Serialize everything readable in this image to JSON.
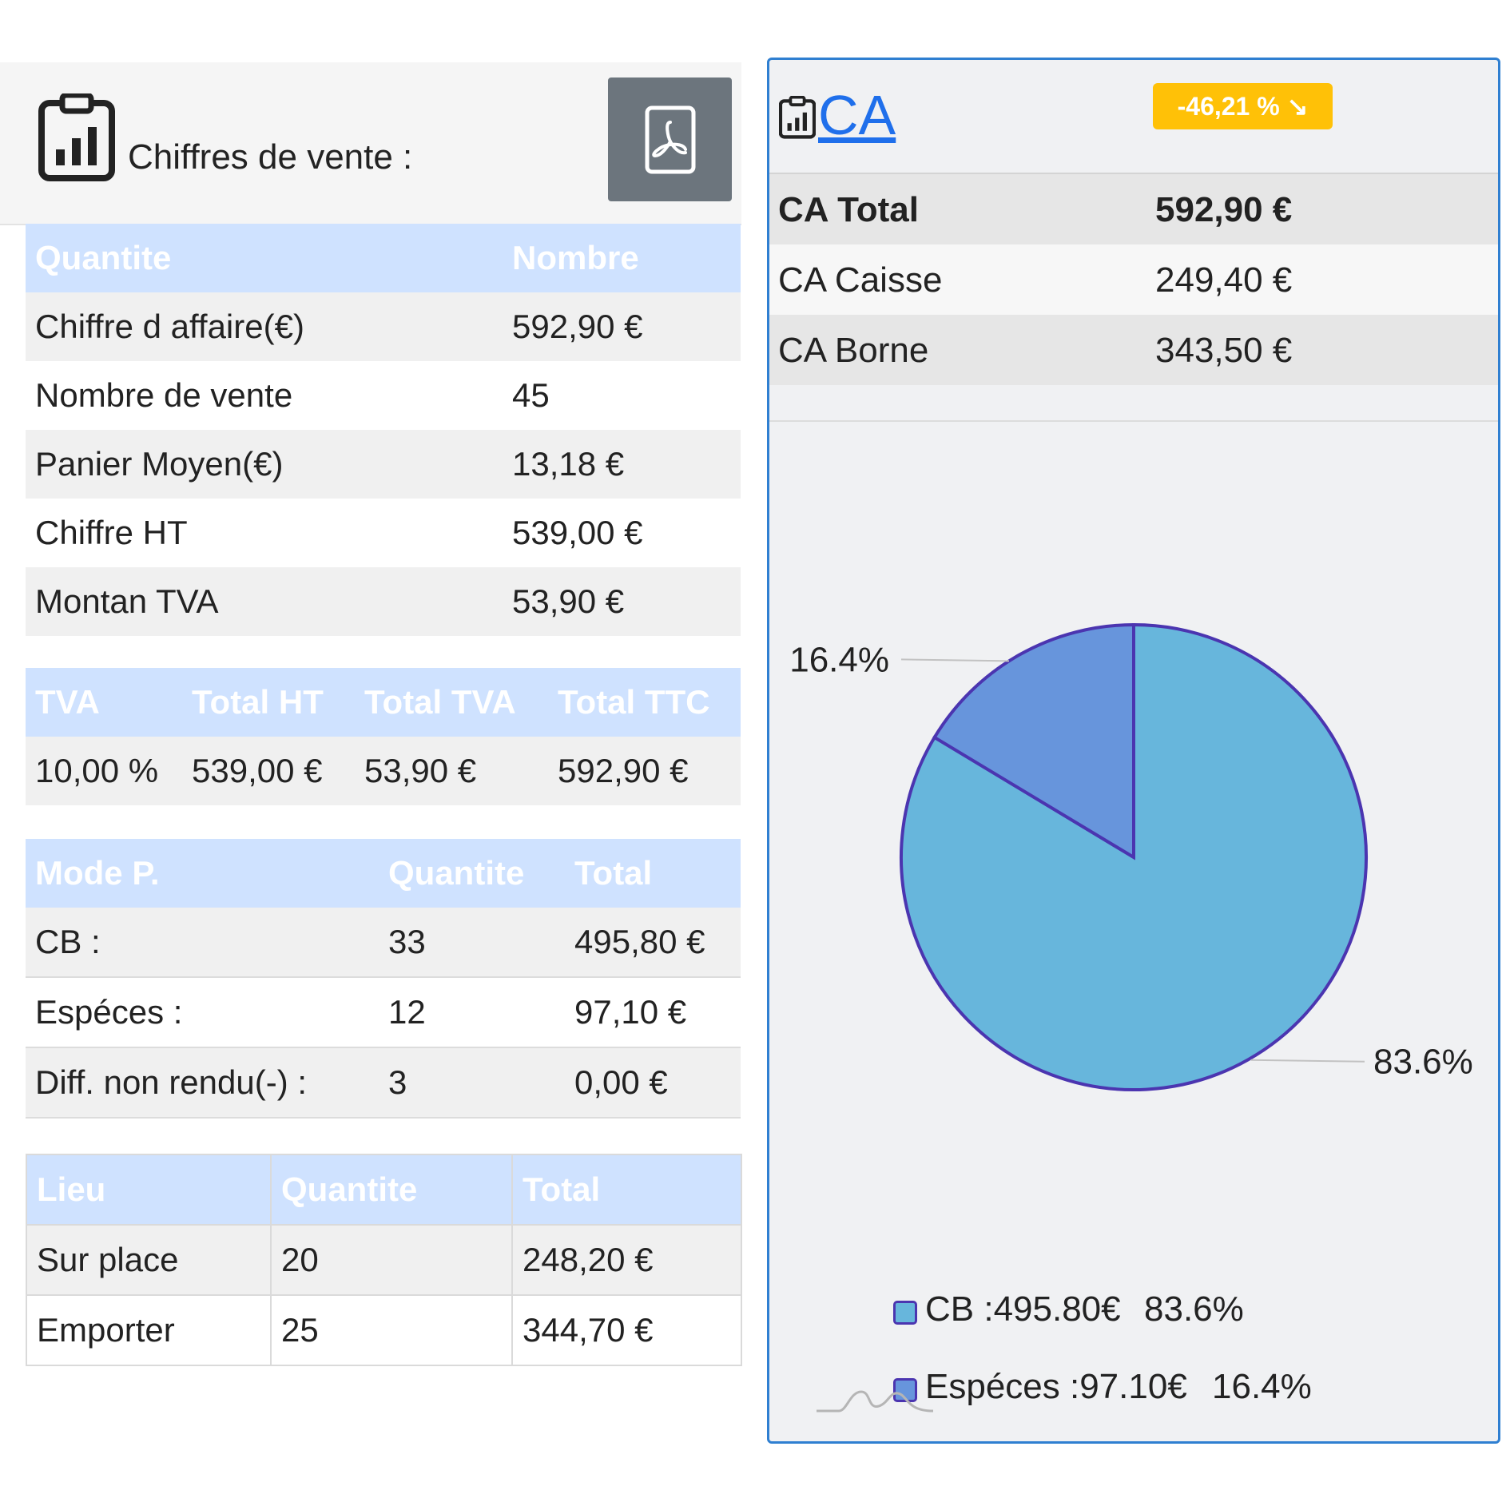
{
  "left": {
    "title": "Chiffres de vente :",
    "summary_table": {
      "headers": [
        "Quantite",
        "Nombre"
      ],
      "rows": [
        [
          "Chiffre d affaire(€)",
          "592,90 €"
        ],
        [
          "Nombre de vente",
          "45"
        ],
        [
          "Panier Moyen(€)",
          " 13,18 €"
        ],
        [
          "Chiffre HT",
          "539,00 €"
        ],
        [
          "Montan TVA",
          "53,90 €"
        ]
      ]
    },
    "tva_table": {
      "headers": [
        "TVA",
        "Total HT",
        "Total TVA",
        "Total TTC"
      ],
      "rows": [
        [
          "10,00 %",
          "539,00 €",
          "53,90 €",
          "592,90 €"
        ]
      ]
    },
    "payment_table": {
      "headers": [
        "Mode P.",
        "Quantite",
        "Total"
      ],
      "rows": [
        [
          "CB :",
          "33",
          "495,80 €"
        ],
        [
          "Espéces :",
          "12",
          "97,10 €"
        ],
        [
          "Diff. non rendu(-) :",
          "3",
          "0,00 €"
        ]
      ]
    },
    "place_table": {
      "headers": [
        "Lieu",
        "Quantite",
        "Total"
      ],
      "rows": [
        [
          "Sur place",
          "20",
          "248,20 €"
        ],
        [
          "Emporter",
          "25",
          "344,70 €"
        ]
      ]
    }
  },
  "right": {
    "title_link": "CA",
    "badge_text": "-46,21 % ↘",
    "rows": [
      {
        "label": "CA Total",
        "value": "592,90 €"
      },
      {
        "label": "CA Caisse",
        "value": "249,40 €"
      },
      {
        "label": "CA Borne",
        "value": "343,50 €"
      }
    ]
  },
  "colors": {
    "accent_blue": "#2f7fd1",
    "header_blue": "#cfe2ff",
    "badge_yellow": "#ffc107",
    "pdf_button_gray": "#6c757d",
    "pie_cb": "#67b6dc",
    "pie_especes": "#6795dc",
    "pie_stroke": "#4b35b0"
  },
  "icons": {
    "report": "clipboard-chart-icon",
    "pdf": "pdf-file-icon"
  },
  "chart_data": {
    "type": "pie",
    "series": [
      {
        "values": [
          495.8,
          97.1
        ],
        "percent_labels": [
          "83.6%",
          "16.4%"
        ]
      }
    ],
    "categories": [
      "CB",
      "Espéces"
    ],
    "legend": [
      {
        "label": "CB :495.80€",
        "percent": "83.6%"
      },
      {
        "label": "Espéces :97.10€",
        "percent": "16.4%"
      }
    ],
    "legend_position": "bottom"
  }
}
